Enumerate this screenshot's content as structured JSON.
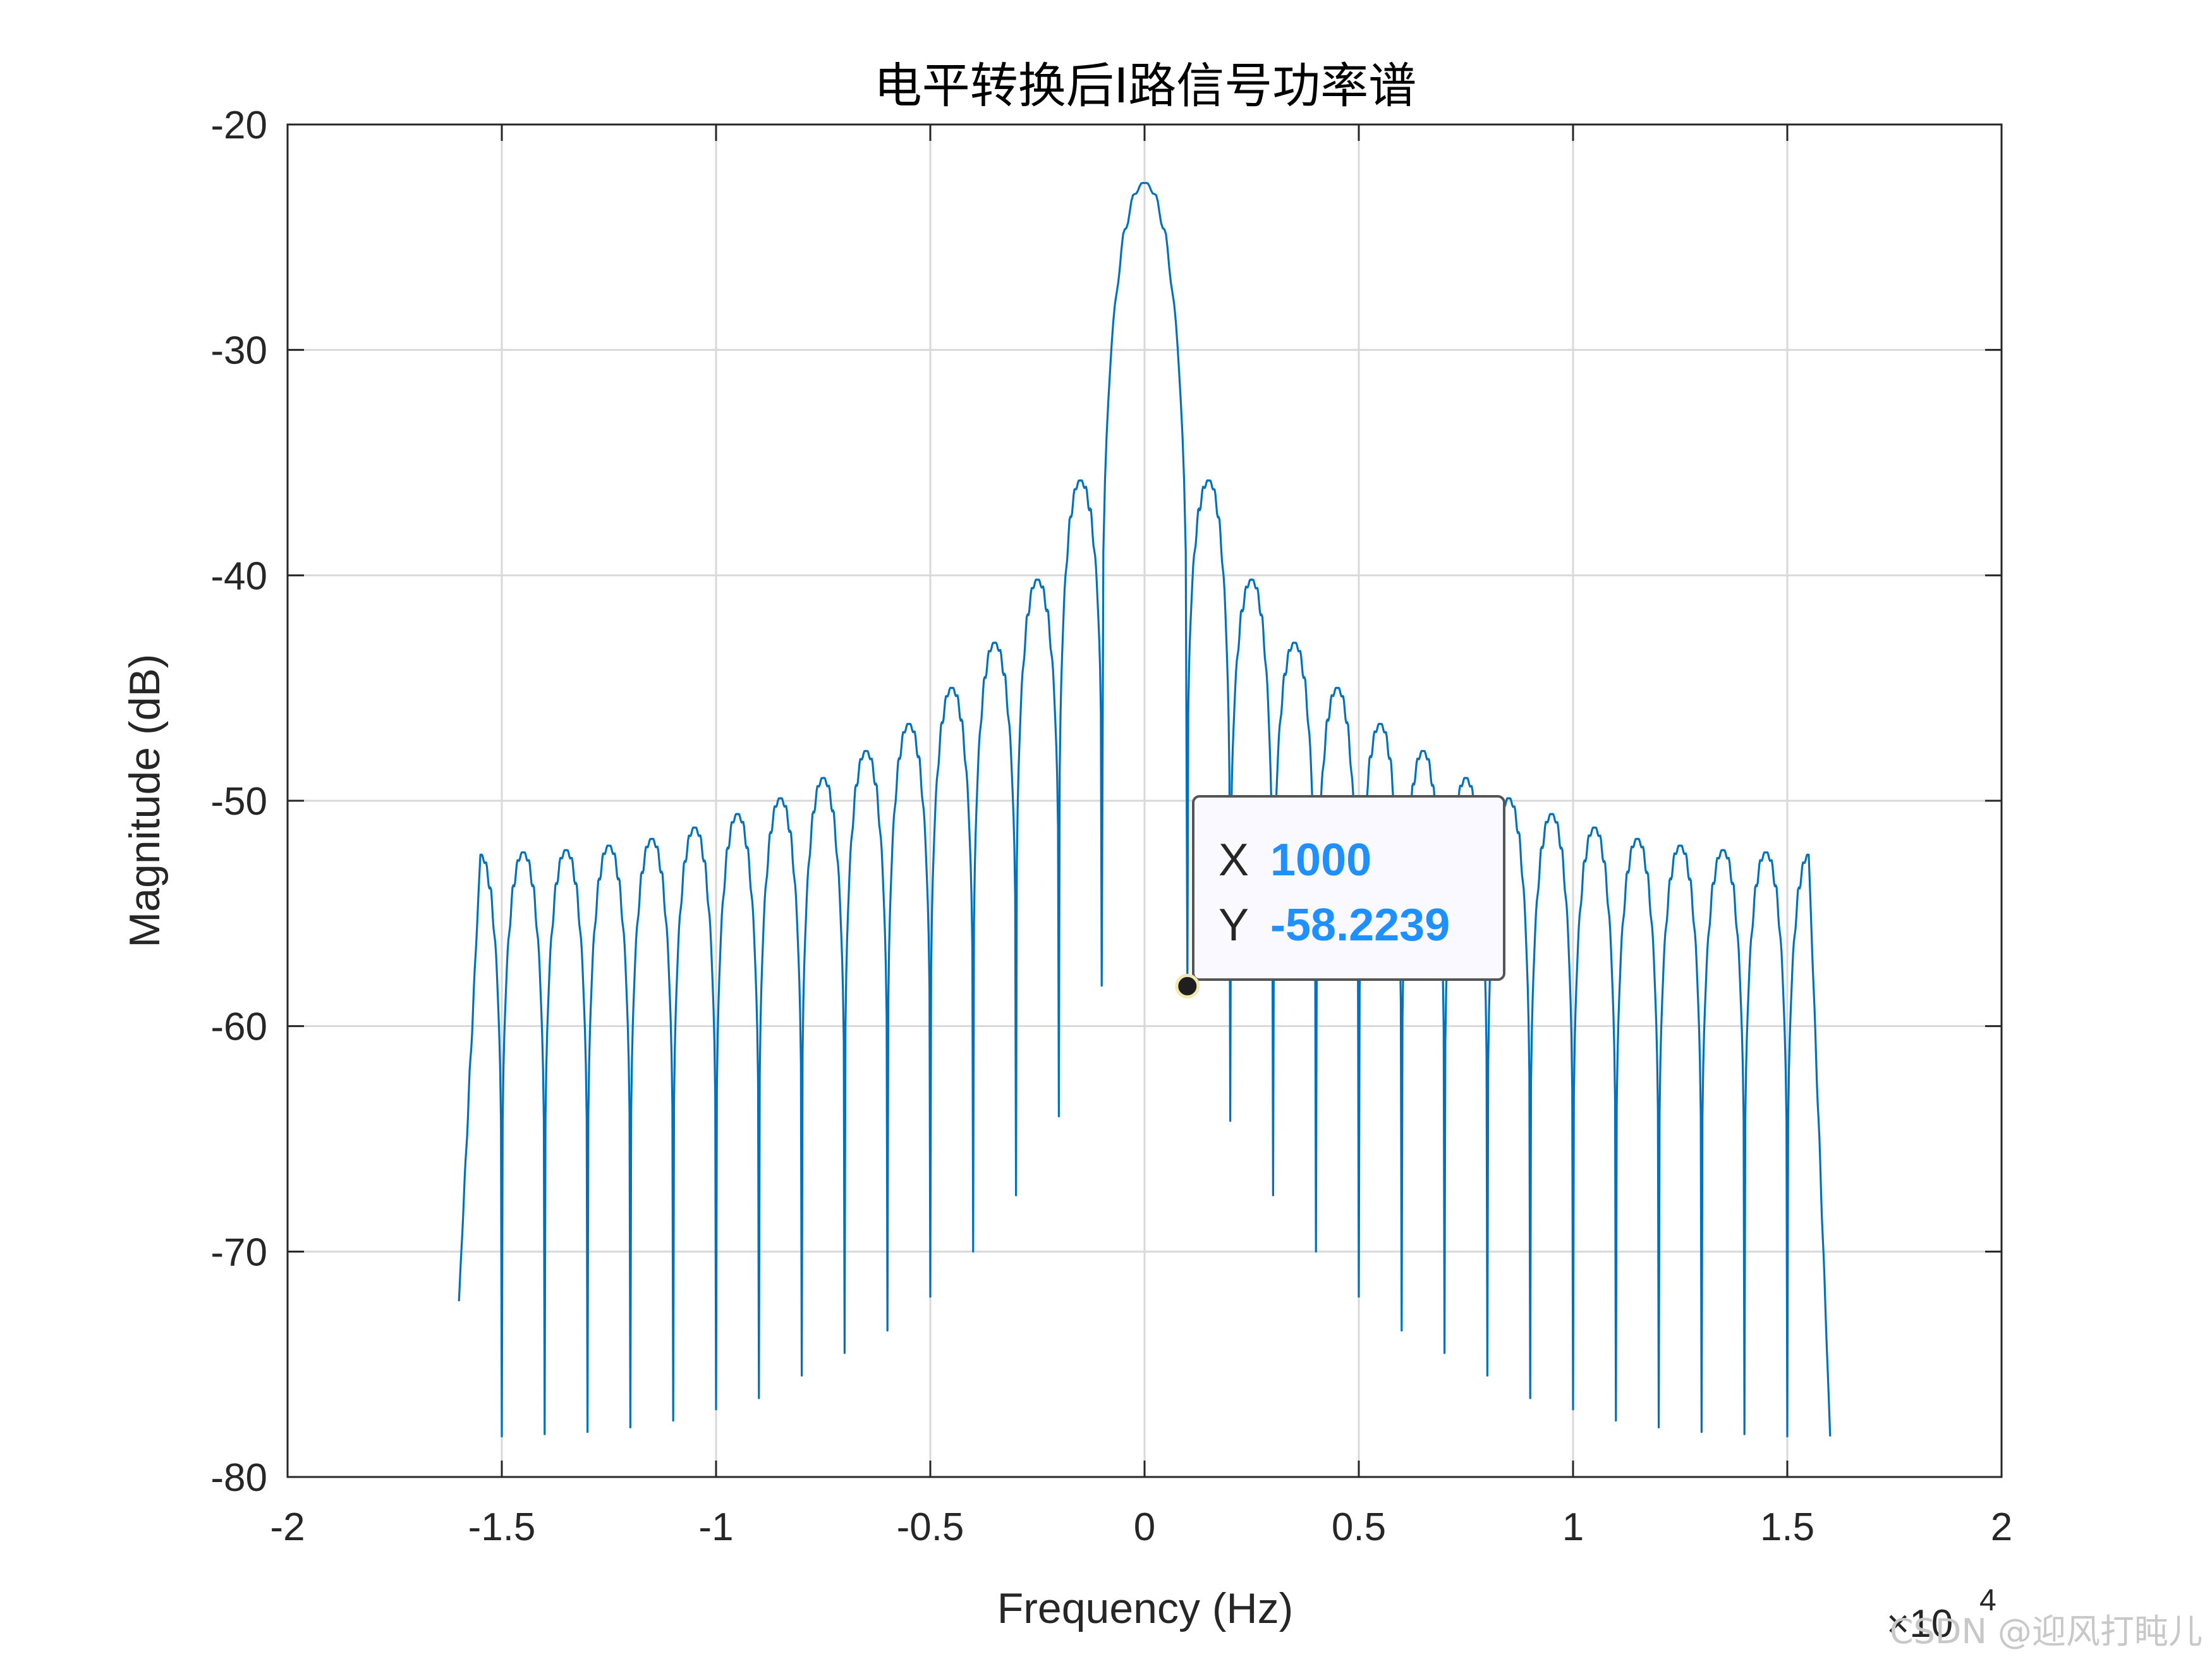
{
  "chart_data": {
    "type": "line",
    "title": "电平转换后I路信号功率谱",
    "xlabel": "Frequency (Hz)",
    "ylabel": "Magnitude (dB)",
    "xlim": [
      -2,
      2
    ],
    "ylim": [
      -80,
      -20
    ],
    "x_exponent_label": "×10",
    "x_exponent_power": "4",
    "x_ticks": [
      "-2",
      "-1.5",
      "-1",
      "-0.5",
      "0",
      "0.5",
      "1",
      "1.5",
      "2"
    ],
    "y_ticks": [
      "-80",
      "-70",
      "-60",
      "-50",
      "-40",
      "-30",
      "-20"
    ],
    "grid": true,
    "line_color": "#0072bd",
    "main_lobe_peak_db": -22.6,
    "sidelobe_peaks": [
      {
        "x": 0.15,
        "y": -35.8
      },
      {
        "x": 0.25,
        "y": -40.2
      },
      {
        "x": 0.35,
        "y": -43.0
      },
      {
        "x": 0.45,
        "y": -45.0
      },
      {
        "x": 0.55,
        "y": -46.6
      },
      {
        "x": 0.65,
        "y": -47.8
      },
      {
        "x": 0.75,
        "y": -49.0
      },
      {
        "x": 0.85,
        "y": -49.9
      },
      {
        "x": 0.95,
        "y": -50.6
      },
      {
        "x": 1.05,
        "y": -51.2
      },
      {
        "x": 1.15,
        "y": -51.7
      },
      {
        "x": 1.25,
        "y": -52.0
      },
      {
        "x": 1.35,
        "y": -52.2
      },
      {
        "x": 1.45,
        "y": -52.3
      },
      {
        "x": 1.55,
        "y": -52.4
      }
    ],
    "nulls_right": [
      {
        "x": 0.1,
        "y": -58.2
      },
      {
        "x": 0.2,
        "y": -64.2
      },
      {
        "x": 0.3,
        "y": -67.5
      },
      {
        "x": 0.4,
        "y": -70.0
      },
      {
        "x": 0.5,
        "y": -72.0
      },
      {
        "x": 0.6,
        "y": -73.5
      },
      {
        "x": 0.7,
        "y": -74.5
      },
      {
        "x": 0.8,
        "y": -75.5
      },
      {
        "x": 0.9,
        "y": -76.5
      },
      {
        "x": 1.0,
        "y": -77.0
      },
      {
        "x": 1.1,
        "y": -77.5
      },
      {
        "x": 1.2,
        "y": -77.8
      },
      {
        "x": 1.3,
        "y": -78.0
      },
      {
        "x": 1.4,
        "y": -78.1
      },
      {
        "x": 1.5,
        "y": -78.2
      }
    ],
    "nulls_left": [
      {
        "x": -0.1,
        "y": -58.2
      },
      {
        "x": -0.2,
        "y": -64.0
      },
      {
        "x": -0.3,
        "y": -67.5
      },
      {
        "x": -0.4,
        "y": -70.0
      },
      {
        "x": -0.5,
        "y": -72.0
      },
      {
        "x": -0.6,
        "y": -73.5
      },
      {
        "x": -0.7,
        "y": -74.5
      },
      {
        "x": -0.8,
        "y": -75.5
      },
      {
        "x": -0.9,
        "y": -76.5
      },
      {
        "x": -1.0,
        "y": -77.0
      },
      {
        "x": -1.1,
        "y": -77.5
      },
      {
        "x": -1.2,
        "y": -77.8
      },
      {
        "x": -1.3,
        "y": -78.0
      },
      {
        "x": -1.4,
        "y": -78.1
      },
      {
        "x": -1.5,
        "y": -78.2
      }
    ],
    "endpoints": [
      {
        "x": -1.6,
        "y": -72.2
      },
      {
        "x": 1.6,
        "y": -78.2
      }
    ],
    "datatip": {
      "x_label": "X",
      "x_value": "1000",
      "y_label": "Y",
      "y_value": "-58.2239",
      "x": 0.1,
      "y": -58.2239
    }
  },
  "watermark": "CSDN @迎风打盹儿"
}
